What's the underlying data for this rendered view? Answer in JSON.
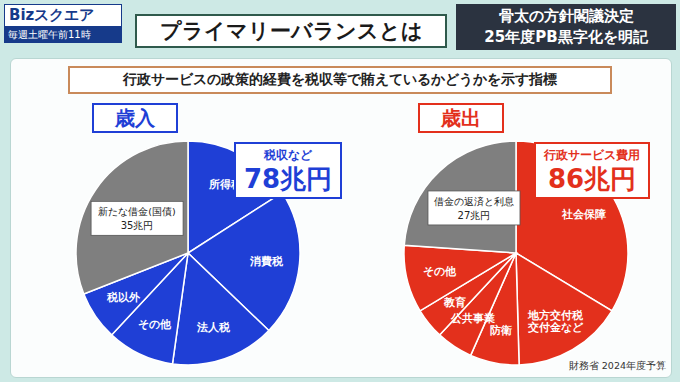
{
  "header": {
    "logo": "Bizスクエア",
    "schedule": "毎週土曜午前11時",
    "title": "プライマリーバランスとは",
    "news": [
      "骨太の方針閣議決定",
      "25年度PB黒字化を明記"
    ]
  },
  "subtitle": "行政サービスの政策的経費を税収等で賄えているかどうかを示す指標",
  "chart_data": [
    {
      "type": "pie",
      "title": "歳入",
      "color": "#1f3fd6",
      "categories": [
        "所得税",
        "消費税",
        "法人税",
        "その他",
        "税以外",
        "新たな借金(国債)"
      ],
      "values": [
        18,
        24,
        17,
        11,
        8,
        35
      ],
      "value_labels": [
        null,
        null,
        null,
        null,
        null,
        "35兆円"
      ],
      "colors": [
        "#1f3fd6",
        "#1f3fd6",
        "#1f3fd6",
        "#1f3fd6",
        "#1f3fd6",
        "#7f7f7f"
      ],
      "annotation": {
        "title": "税収など",
        "text": "78兆円"
      }
    },
    {
      "type": "pie",
      "title": "歳出",
      "color": "#e3301c",
      "categories": [
        "社会保障",
        "地方交付税\n交付金など",
        "防衛",
        "公共事業",
        "教育",
        "その他",
        "借金の返済と利息"
      ],
      "values": [
        38,
        18,
        8,
        6,
        5,
        11,
        27
      ],
      "value_labels": [
        null,
        null,
        null,
        null,
        null,
        null,
        "27兆円"
      ],
      "colors": [
        "#e3301c",
        "#e3301c",
        "#e3301c",
        "#e3301c",
        "#e3301c",
        "#e3301c",
        "#7f7f7f"
      ],
      "annotation": {
        "title": "行政サービス費用",
        "text": "86兆円"
      }
    }
  ],
  "source": "財務省 2024年度予算"
}
